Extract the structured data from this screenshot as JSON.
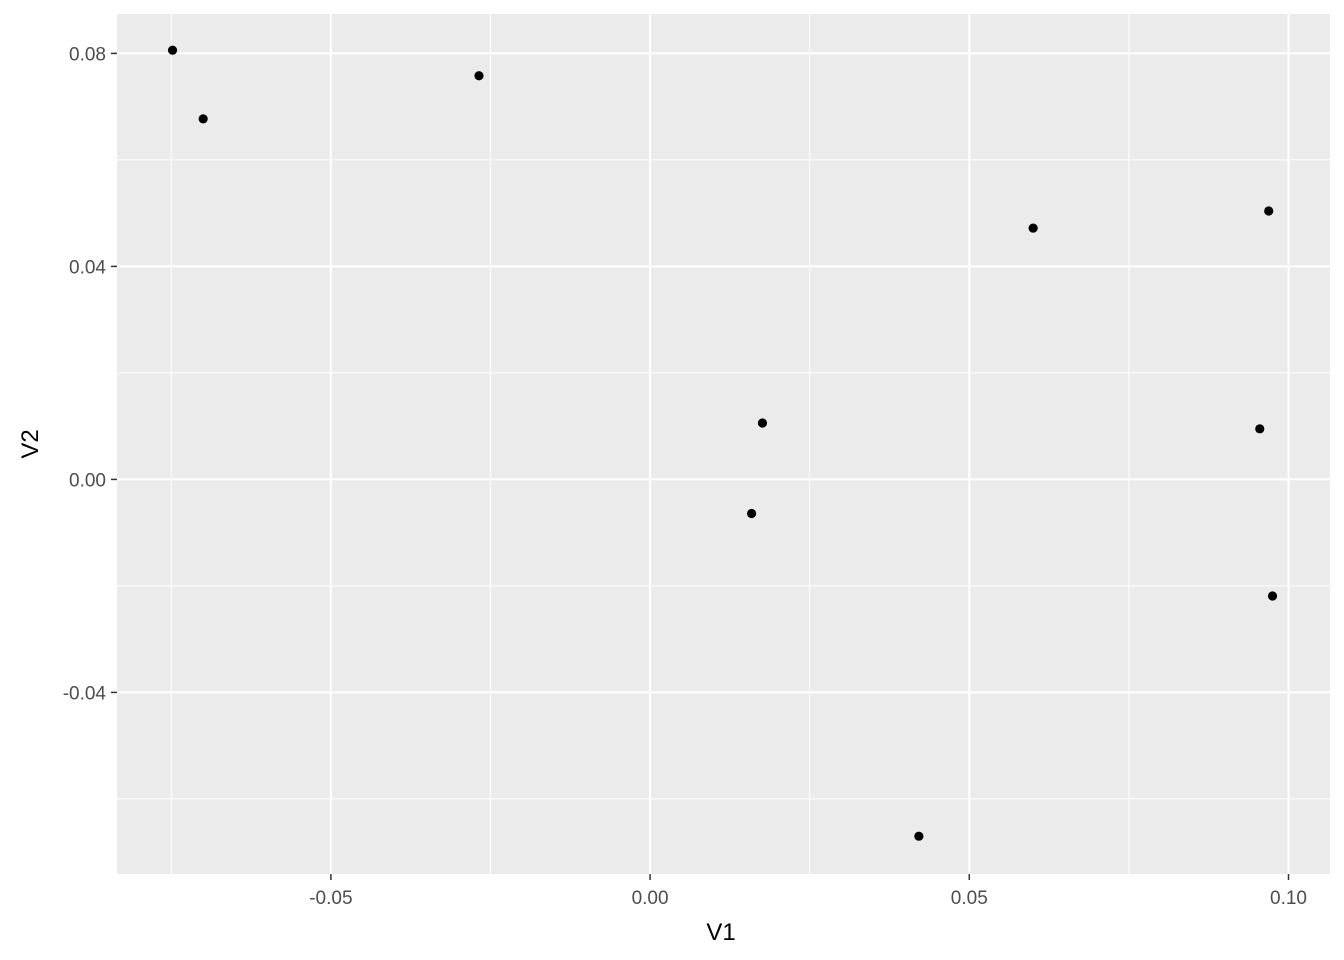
{
  "chart_data": {
    "type": "scatter",
    "title": "",
    "xlabel": "V1",
    "ylabel": "V2",
    "xlim": [
      -0.0835,
      0.1065
    ],
    "ylim": [
      -0.0741,
      0.0874
    ],
    "x_ticks": [
      -0.05,
      0.0,
      0.05,
      0.1
    ],
    "x_tick_labels": [
      "-0.05",
      "0.00",
      "0.05",
      "0.10"
    ],
    "y_ticks": [
      -0.04,
      0.0,
      0.04,
      0.08
    ],
    "y_tick_labels": [
      "-0.04",
      "0.00",
      "0.04",
      "0.08"
    ],
    "x_minor": [
      -0.075,
      -0.025,
      0.025,
      0.075
    ],
    "y_minor": [
      -0.06,
      -0.02,
      0.02,
      0.06
    ],
    "grid": true,
    "legend": "none",
    "colors": {
      "panel": "#ebebeb",
      "grid": "#ffffff",
      "point": "#000000"
    },
    "points": [
      {
        "x": -0.0748,
        "y": 0.0806
      },
      {
        "x": -0.07,
        "y": 0.0677
      },
      {
        "x": -0.0268,
        "y": 0.0758
      },
      {
        "x": 0.0176,
        "y": 0.0106
      },
      {
        "x": 0.0159,
        "y": -0.0064
      },
      {
        "x": 0.0421,
        "y": -0.067
      },
      {
        "x": 0.06,
        "y": 0.0472
      },
      {
        "x": 0.0969,
        "y": 0.0504
      },
      {
        "x": 0.0955,
        "y": 0.0095
      },
      {
        "x": 0.0975,
        "y": -0.0219
      }
    ]
  }
}
